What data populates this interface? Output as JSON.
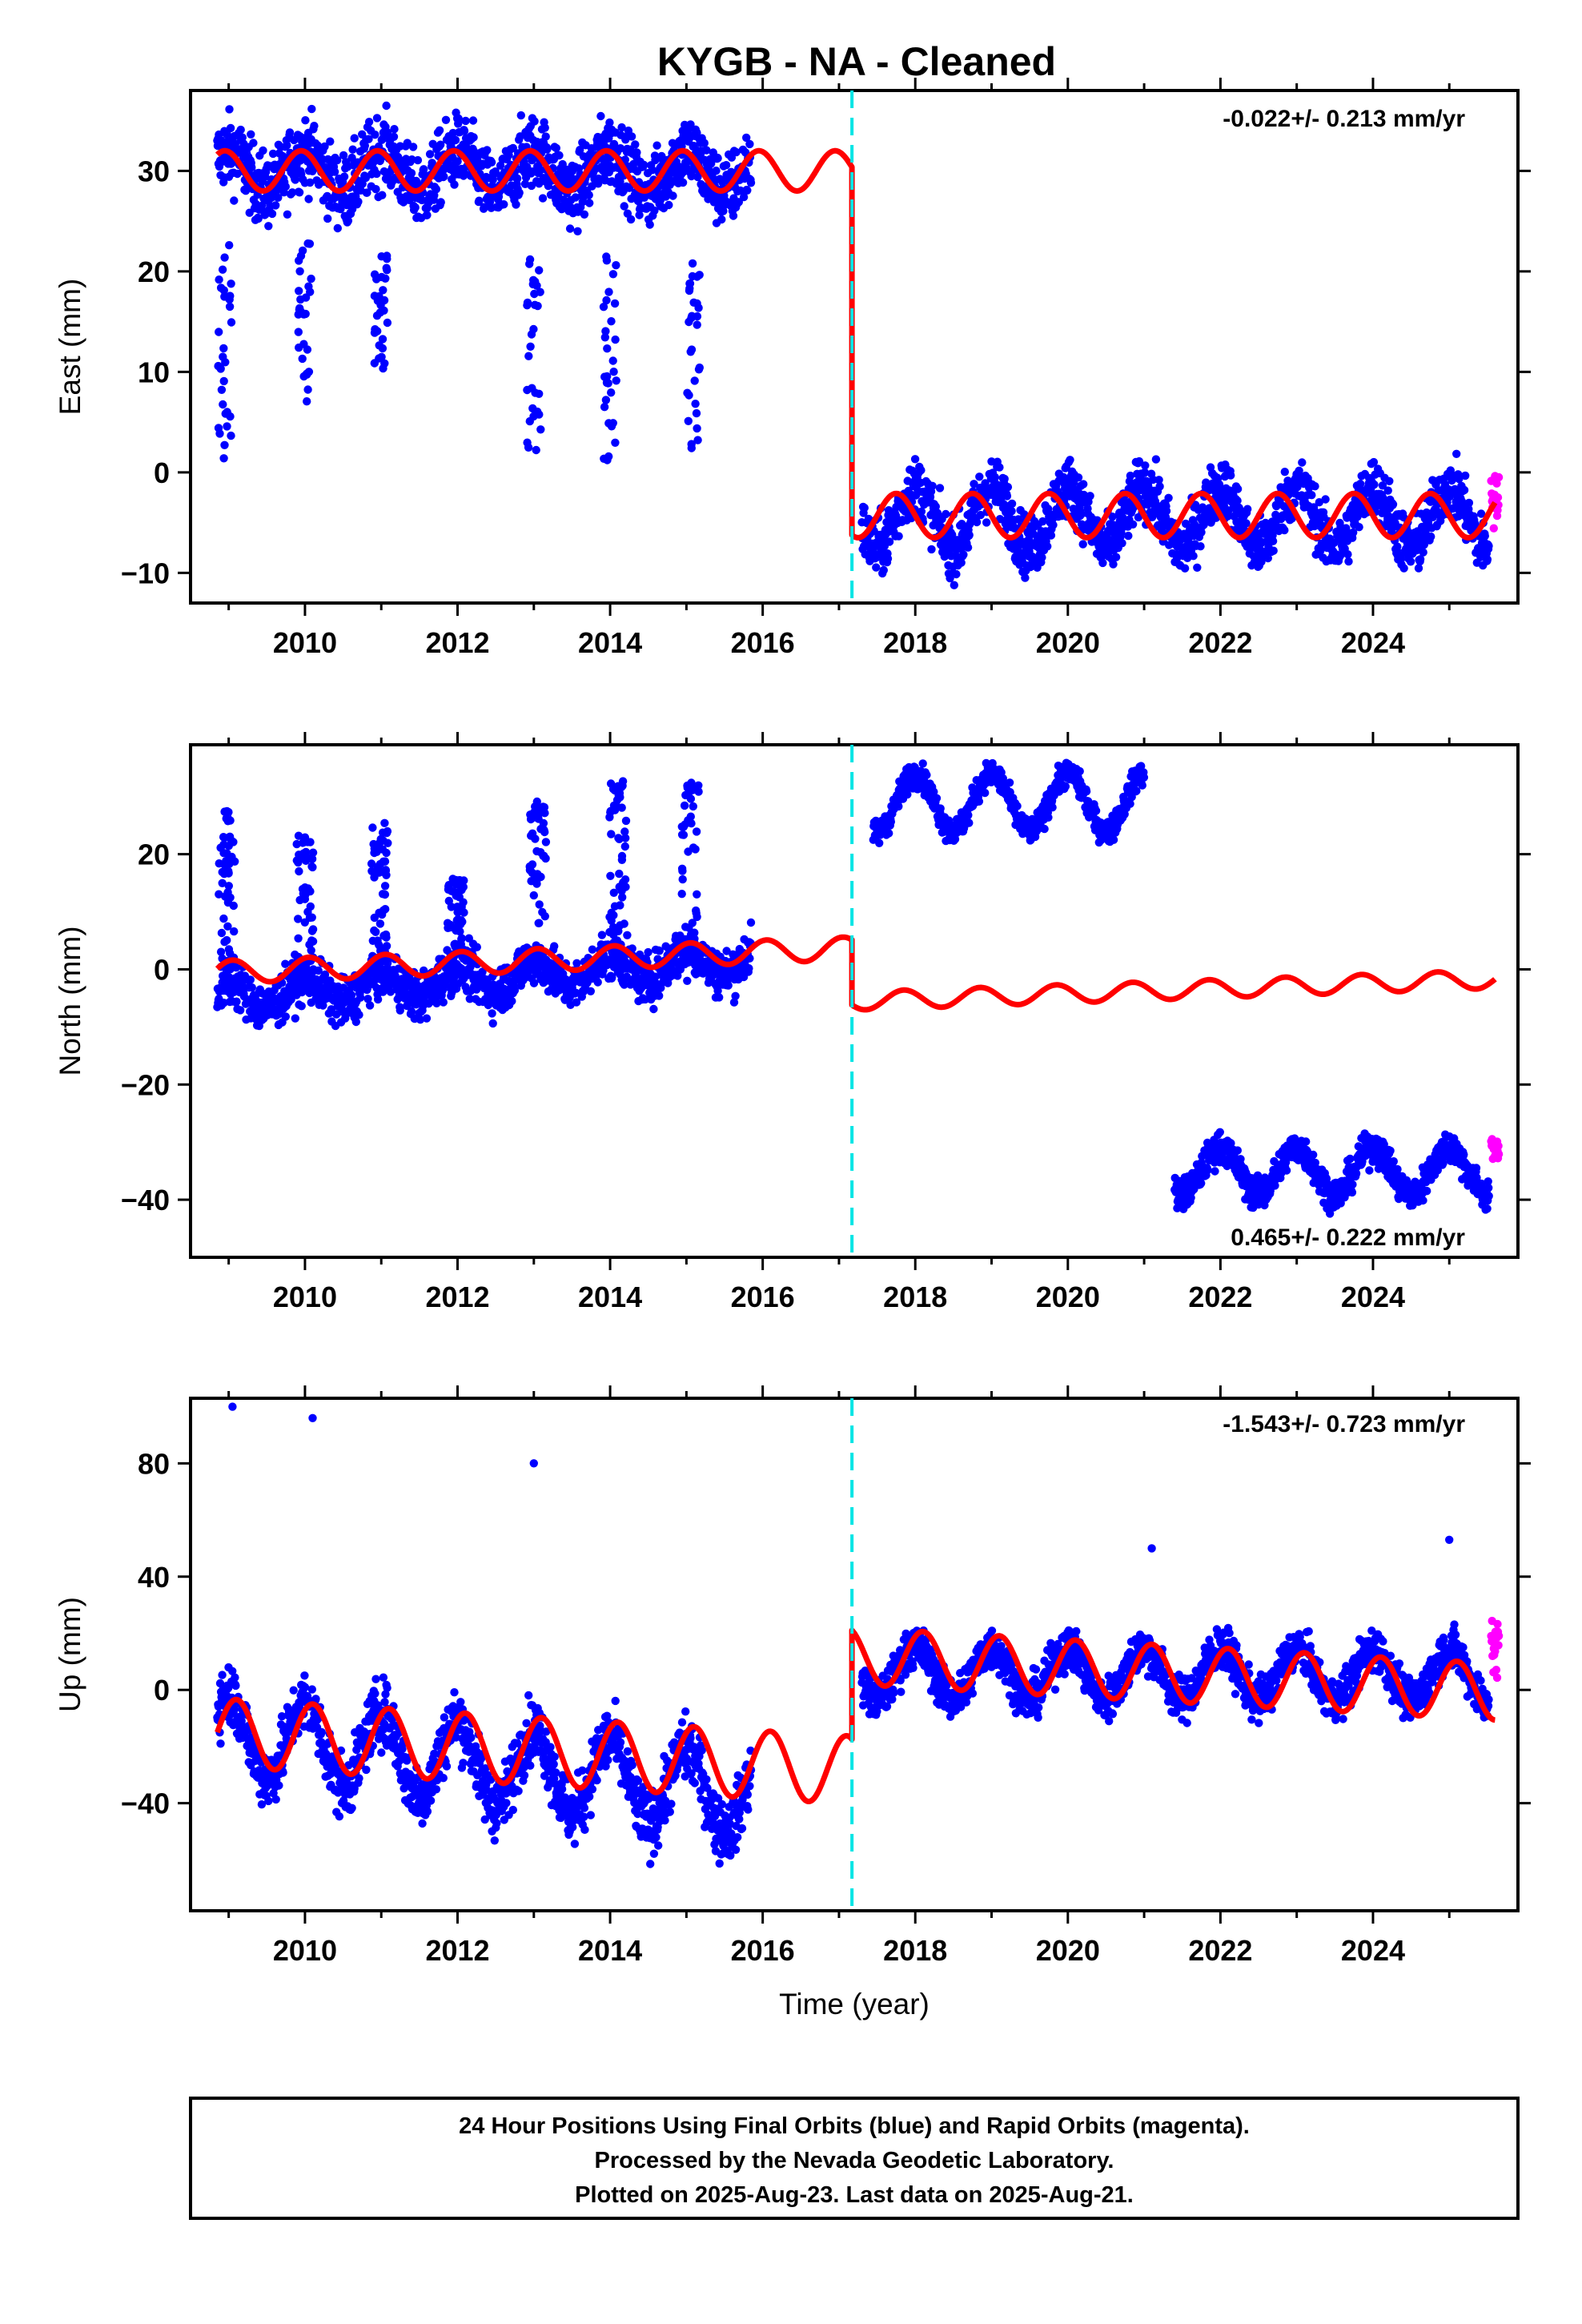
{
  "title": "KYGB  - NA - Cleaned",
  "colors": {
    "final_orbits": "#0000ff",
    "rapid_orbits": "#ff00ff",
    "model_fit": "#ff0000",
    "equipment_change": "#00e5e5"
  },
  "chart_data": [
    {
      "type": "scatter",
      "panel": "east",
      "ylabel": "East (mm)",
      "xlabel": "",
      "rate_text": "-0.022+/- 0.213 mm/yr",
      "xlim": [
        2008.5,
        2025.9
      ],
      "ylim": [
        -13,
        38
      ],
      "xticks": [
        2010,
        2012,
        2014,
        2016,
        2018,
        2020,
        2022,
        2024
      ],
      "yticks": [
        -10,
        0,
        10,
        20,
        30
      ],
      "grid": false,
      "break_year": 2017.17,
      "series": [
        {
          "role": "final",
          "segments": [
            {
              "x0": 2008.85,
              "x1": 2015.85,
              "level": 30,
              "amp": 2,
              "noise": 2.6
            },
            {
              "x0": 2017.3,
              "x1": 2025.52,
              "level": -4.5,
              "amp": 3,
              "noise": 2.1
            }
          ],
          "outlier_groups": [
            {
              "year": 2008.95,
              "ymin": 0,
              "ymax": 26
            },
            {
              "year": 2010.0,
              "ymin": 6,
              "ymax": 24
            },
            {
              "year": 2011.0,
              "ymin": 10,
              "ymax": 22
            },
            {
              "year": 2013.0,
              "ymin": 2,
              "ymax": 22
            },
            {
              "year": 2014.0,
              "ymin": 1,
              "ymax": 22
            },
            {
              "year": 2015.1,
              "ymin": 2,
              "ymax": 22
            }
          ]
        },
        {
          "role": "rapid",
          "x0": 2025.55,
          "x1": 2025.65,
          "level": -2.5,
          "noise": 2.3
        }
      ],
      "model": {
        "segments": [
          {
            "x0": 2008.85,
            "x1": 2017.17,
            "level": 30,
            "amp": 2,
            "phase": 0.3
          },
          {
            "x0": 2017.17,
            "x1": 2025.6,
            "level": -4.3,
            "amp": 2.2,
            "phase": 0.5
          }
        ]
      }
    },
    {
      "type": "scatter",
      "panel": "north",
      "ylabel": "North (mm)",
      "xlabel": "",
      "rate_text": "0.465+/- 0.222 mm/yr",
      "xlim": [
        2008.5,
        2025.9
      ],
      "ylim": [
        -50,
        39
      ],
      "xticks": [
        2010,
        2012,
        2014,
        2016,
        2018,
        2020,
        2022,
        2024
      ],
      "yticks": [
        -40,
        -20,
        0,
        20
      ],
      "grid": false,
      "break_year": 2017.17,
      "series": [
        {
          "role": "final",
          "segments": [
            {
              "x0": 2008.85,
              "x1": 2015.85,
              "level": -5,
              "slope": 1.0,
              "amp": 2.5,
              "noise": 3.0
            },
            {
              "x0": 2017.45,
              "x1": 2021.0,
              "level": 29,
              "amp": 5,
              "noise": 1.6
            },
            {
              "x0": 2021.4,
              "x1": 2025.52,
              "level": -35,
              "amp": 4,
              "noise": 2.0
            }
          ],
          "spikes": [
            {
              "year": 2008.98,
              "peak": 28
            },
            {
              "year": 2010.0,
              "peak": 23
            },
            {
              "year": 2010.98,
              "peak": 24
            },
            {
              "year": 2011.98,
              "peak": 15
            },
            {
              "year": 2013.05,
              "peak": 28
            },
            {
              "year": 2014.1,
              "peak": 32
            },
            {
              "year": 2015.05,
              "peak": 32
            }
          ]
        },
        {
          "role": "rapid",
          "x0": 2025.55,
          "x1": 2025.65,
          "level": -31,
          "noise": 2.0
        }
      ],
      "model": {
        "segments": [
          {
            "x0": 2008.85,
            "x1": 2017.17,
            "level": -0.5,
            "slope": 0.5,
            "amp": 2,
            "phase": 0.2
          },
          {
            "x0": 2017.17,
            "x1": 2025.6,
            "level": -5.5,
            "slope": 0.45,
            "amp": 1.6,
            "phase": 0.4
          }
        ]
      }
    },
    {
      "type": "scatter",
      "panel": "up",
      "ylabel": "Up (mm)",
      "xlabel": "Time (year)",
      "rate_text": "-1.543+/- 0.723 mm/yr",
      "xlim": [
        2008.5,
        2025.9
      ],
      "ylim": [
        -78,
        103
      ],
      "xticks": [
        2010,
        2012,
        2014,
        2016,
        2018,
        2020,
        2022,
        2024
      ],
      "yticks": [
        -40,
        0,
        40,
        80
      ],
      "grid": false,
      "break_year": 2017.17,
      "series": [
        {
          "role": "final",
          "segments": [
            {
              "x0": 2008.85,
              "x1": 2015.85,
              "level": -15,
              "slope": -3.2,
              "amp": 14,
              "noise": 8
            },
            {
              "x0": 2017.3,
              "x1": 2025.52,
              "level": 6,
              "slope": -0.1,
              "amp": 9,
              "noise": 5.5
            }
          ],
          "outliers": [
            {
              "year": 2009.05,
              "value": 100
            },
            {
              "year": 2010.1,
              "value": 96
            },
            {
              "year": 2013.0,
              "value": 80
            },
            {
              "year": 2021.1,
              "value": 50
            },
            {
              "year": 2025.0,
              "value": 53
            }
          ]
        },
        {
          "role": "rapid",
          "x0": 2025.55,
          "x1": 2025.65,
          "level": 14,
          "noise": 8
        }
      ],
      "model": {
        "segments": [
          {
            "x0": 2008.85,
            "x1": 2017.17,
            "level": -15,
            "slope": -1.6,
            "amp": 12,
            "phase": 0.15
          },
          {
            "x0": 2017.17,
            "x1": 2025.6,
            "level": 12,
            "slope": -1.5,
            "amp": 10,
            "phase": 0.15
          }
        ]
      }
    }
  ],
  "footer": {
    "line1": "24 Hour Positions Using Final Orbits (blue) and Rapid Orbits (magenta).",
    "line2": "Processed by the Nevada Geodetic Laboratory.",
    "line3": "Plotted on 2025-Aug-23. Last data on 2025-Aug-21."
  }
}
